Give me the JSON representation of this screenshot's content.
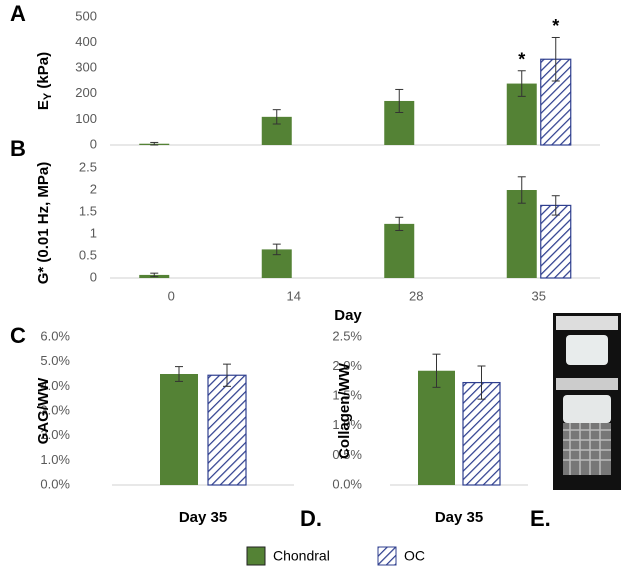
{
  "chart_data": [
    {
      "type": "bar",
      "panel_label": "A",
      "ylabel": {
        "text": "E",
        "sub": "Y",
        "rest": " (kPa)"
      },
      "categories": [
        null,
        null,
        null,
        null
      ],
      "series": [
        {
          "name": "Chondral",
          "color": "#548235",
          "values": [
            5,
            110,
            172,
            240
          ],
          "errors": [
            5,
            28,
            45,
            50
          ],
          "annotations": [
            null,
            null,
            null,
            "*"
          ]
        },
        {
          "name": "OC",
          "color": "#2f3f8f",
          "hatch": true,
          "values": [
            null,
            null,
            null,
            335
          ],
          "errors": [
            null,
            null,
            null,
            85
          ],
          "annotations": [
            null,
            null,
            null,
            "*"
          ]
        }
      ],
      "ylim": [
        0,
        500
      ],
      "yticks": [
        0,
        100,
        200,
        300,
        400,
        500
      ]
    },
    {
      "type": "bar",
      "panel_label": "B",
      "ylabel": "G* (0.01 Hz, MPa)",
      "xlabel": "Day",
      "categories": [
        "0",
        "14",
        "28",
        "35"
      ],
      "series": [
        {
          "name": "Chondral",
          "color": "#548235",
          "values": [
            0.07,
            0.65,
            1.23,
            2.0
          ],
          "errors": [
            0.04,
            0.12,
            0.15,
            0.3
          ]
        },
        {
          "name": "OC",
          "color": "#2f3f8f",
          "hatch": true,
          "values": [
            null,
            null,
            null,
            1.65
          ],
          "errors": [
            null,
            null,
            null,
            0.22
          ]
        }
      ],
      "ylim": [
        0,
        2.5
      ],
      "yticks": [
        0,
        0.5,
        1,
        1.5,
        2,
        2.5
      ]
    },
    {
      "type": "bar",
      "panel_label": "C",
      "ylabel": "GAG/WW",
      "categories": [
        "Day 35"
      ],
      "series": [
        {
          "name": "Chondral",
          "color": "#548235",
          "values": [
            4.5
          ],
          "errors": [
            0.3
          ]
        },
        {
          "name": "OC",
          "color": "#2f3f8f",
          "hatch": true,
          "values": [
            4.45
          ],
          "errors": [
            0.45
          ]
        }
      ],
      "ylim": [
        0,
        6
      ],
      "yticks": [
        {
          "value": 0,
          "label": "0.0%"
        },
        {
          "value": 1,
          "label": "1.0%"
        },
        {
          "value": 2,
          "label": "2.0%"
        },
        {
          "value": 3,
          "label": "3.0%"
        },
        {
          "value": 4,
          "label": "4.0%"
        },
        {
          "value": 5,
          "label": "5.0%"
        },
        {
          "value": 6,
          "label": "6.0%"
        }
      ]
    },
    {
      "type": "bar",
      "panel_label": "D.",
      "ylabel": "Collagen/WW",
      "categories": [
        "Day 35"
      ],
      "series": [
        {
          "name": "Chondral",
          "color": "#548235",
          "values": [
            1.93
          ],
          "errors": [
            0.28
          ]
        },
        {
          "name": "OC",
          "color": "#2f3f8f",
          "hatch": true,
          "values": [
            1.73
          ],
          "errors": [
            0.28
          ]
        }
      ],
      "ylim": [
        0,
        2.5
      ],
      "yticks": [
        {
          "value": 0,
          "label": "0.0%"
        },
        {
          "value": 0.5,
          "label": "0.5%"
        },
        {
          "value": 1,
          "label": "1.0%"
        },
        {
          "value": 1.5,
          "label": "1.5%"
        },
        {
          "value": 2,
          "label": "2.0%"
        },
        {
          "value": 2.5,
          "label": "2.5%"
        }
      ]
    }
  ],
  "photo_panel": {
    "label": "E."
  }
}
